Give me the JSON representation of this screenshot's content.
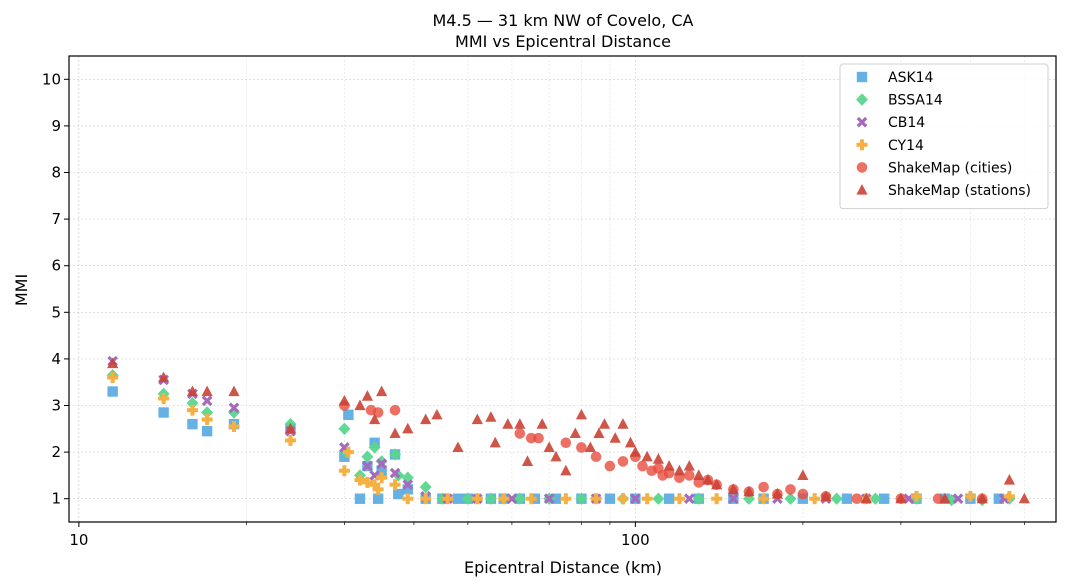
{
  "chart_data": {
    "type": "scatter",
    "title": "M4.5 — 31 km NW of Covelo, CA",
    "subtitle": "MMI vs Epicentral Distance",
    "xlabel": "Epicentral Distance (km)",
    "ylabel": "MMI",
    "x_scale": "log",
    "xlim": [
      9.6,
      570
    ],
    "ylim": [
      0.5,
      10.5
    ],
    "x_ticks": [
      {
        "value": 10,
        "label": "10"
      },
      {
        "value": 100,
        "label": "100"
      }
    ],
    "y_ticks": [
      {
        "value": 1,
        "label": "1"
      },
      {
        "value": 2,
        "label": "2"
      },
      {
        "value": 3,
        "label": "3"
      },
      {
        "value": 4,
        "label": "4"
      },
      {
        "value": 5,
        "label": "5"
      },
      {
        "value": 6,
        "label": "6"
      },
      {
        "value": 7,
        "label": "7"
      },
      {
        "value": 8,
        "label": "8"
      },
      {
        "value": 9,
        "label": "9"
      },
      {
        "value": 10,
        "label": "10"
      }
    ],
    "grid": true,
    "legend_position": "top-right",
    "series": [
      {
        "name": "ASK14",
        "marker": "square",
        "color": "#5DADE2",
        "points": [
          [
            11.5,
            3.3
          ],
          [
            14.2,
            2.85
          ],
          [
            16,
            2.6
          ],
          [
            17,
            2.45
          ],
          [
            19,
            2.6
          ],
          [
            24,
            2.5
          ],
          [
            30,
            1.9
          ],
          [
            30.5,
            2.8
          ],
          [
            32,
            1.0
          ],
          [
            33,
            1.7
          ],
          [
            34,
            2.2
          ],
          [
            34.5,
            1.0
          ],
          [
            35,
            1.6
          ],
          [
            37,
            1.95
          ],
          [
            37.5,
            1.1
          ],
          [
            39,
            1.2
          ],
          [
            42,
            1.0
          ],
          [
            45,
            1.0
          ],
          [
            48,
            1.0
          ],
          [
            50,
            1.0
          ],
          [
            55,
            1.0
          ],
          [
            58,
            1.0
          ],
          [
            62,
            1.0
          ],
          [
            66,
            1.0
          ],
          [
            72,
            1.0
          ],
          [
            80,
            1.0
          ],
          [
            90,
            1.0
          ],
          [
            100,
            1.0
          ],
          [
            115,
            1.0
          ],
          [
            130,
            1.0
          ],
          [
            150,
            1.0
          ],
          [
            170,
            1.0
          ],
          [
            200,
            1.0
          ],
          [
            240,
            1.0
          ],
          [
            280,
            1.0
          ],
          [
            320,
            1.0
          ],
          [
            360,
            1.0
          ],
          [
            400,
            1.0
          ],
          [
            450,
            1.0
          ]
        ]
      },
      {
        "name": "BSSA14",
        "marker": "diamond",
        "color": "#58D68D",
        "points": [
          [
            11.5,
            3.65
          ],
          [
            14.2,
            3.25
          ],
          [
            16,
            3.05
          ],
          [
            17,
            2.85
          ],
          [
            19,
            2.85
          ],
          [
            24,
            2.6
          ],
          [
            30,
            2.5
          ],
          [
            30.2,
            2.0
          ],
          [
            32,
            1.5
          ],
          [
            33,
            1.9
          ],
          [
            34,
            2.1
          ],
          [
            35,
            1.8
          ],
          [
            37,
            1.95
          ],
          [
            37.5,
            1.5
          ],
          [
            39,
            1.45
          ],
          [
            42,
            1.25
          ],
          [
            45,
            1.0
          ],
          [
            50,
            1.0
          ],
          [
            55,
            1.0
          ],
          [
            62,
            1.0
          ],
          [
            70,
            1.0
          ],
          [
            80,
            1.0
          ],
          [
            95,
            1.0
          ],
          [
            110,
            1.0
          ],
          [
            130,
            1.0
          ],
          [
            160,
            1.0
          ],
          [
            190,
            1.0
          ],
          [
            230,
            1.0
          ],
          [
            270,
            1.0
          ],
          [
            320,
            1.0
          ],
          [
            370,
            0.97
          ],
          [
            420,
            0.97
          ],
          [
            470,
            1.0
          ]
        ]
      },
      {
        "name": "CB14",
        "marker": "x",
        "color": "#A569BD",
        "points": [
          [
            11.5,
            3.95
          ],
          [
            14.2,
            3.55
          ],
          [
            16,
            3.25
          ],
          [
            17,
            3.1
          ],
          [
            19,
            2.95
          ],
          [
            24,
            2.45
          ],
          [
            30,
            2.1
          ],
          [
            33,
            1.7
          ],
          [
            34,
            1.5
          ],
          [
            35,
            1.75
          ],
          [
            37,
            1.55
          ],
          [
            39,
            1.3
          ],
          [
            42,
            1.05
          ],
          [
            46,
            1.0
          ],
          [
            52,
            1.0
          ],
          [
            60,
            1.0
          ],
          [
            70,
            1.0
          ],
          [
            85,
            1.0
          ],
          [
            100,
            1.0
          ],
          [
            125,
            1.0
          ],
          [
            150,
            1.0
          ],
          [
            180,
            1.0
          ],
          [
            220,
            1.0
          ],
          [
            260,
            1.0
          ],
          [
            310,
            1.0
          ],
          [
            380,
            1.0
          ],
          [
            460,
            1.0
          ]
        ]
      },
      {
        "name": "CY14",
        "marker": "plus",
        "color": "#F5B041",
        "points": [
          [
            11.5,
            3.6
          ],
          [
            14.2,
            3.15
          ],
          [
            16,
            2.9
          ],
          [
            17,
            2.7
          ],
          [
            19,
            2.55
          ],
          [
            24,
            2.25
          ],
          [
            30,
            1.6
          ],
          [
            30.5,
            2.0
          ],
          [
            32,
            1.4
          ],
          [
            33,
            1.35
          ],
          [
            34,
            1.3
          ],
          [
            34.5,
            1.2
          ],
          [
            35,
            1.45
          ],
          [
            37,
            1.3
          ],
          [
            39,
            1.0
          ],
          [
            42,
            1.0
          ],
          [
            46,
            1.0
          ],
          [
            52,
            1.0
          ],
          [
            58,
            1.0
          ],
          [
            65,
            1.0
          ],
          [
            75,
            1.0
          ],
          [
            85,
            1.0
          ],
          [
            95,
            1.0
          ],
          [
            105,
            1.0
          ],
          [
            120,
            1.0
          ],
          [
            140,
            1.0
          ],
          [
            170,
            1.0
          ],
          [
            210,
            1.0
          ],
          [
            260,
            1.0
          ],
          [
            320,
            1.05
          ],
          [
            400,
            1.05
          ],
          [
            470,
            1.05
          ]
        ]
      },
      {
        "name": "ShakeMap (cities)",
        "marker": "circle",
        "color": "#E74C3C",
        "points": [
          [
            30,
            3.0
          ],
          [
            33.5,
            2.9
          ],
          [
            34.5,
            2.85
          ],
          [
            37,
            2.9
          ],
          [
            62,
            2.4
          ],
          [
            65,
            2.3
          ],
          [
            67,
            2.3
          ],
          [
            75,
            2.2
          ],
          [
            80,
            2.1
          ],
          [
            85,
            1.9
          ],
          [
            90,
            1.7
          ],
          [
            95,
            1.8
          ],
          [
            100,
            1.9
          ],
          [
            103,
            1.7
          ],
          [
            107,
            1.6
          ],
          [
            110,
            1.65
          ],
          [
            112,
            1.5
          ],
          [
            115,
            1.55
          ],
          [
            120,
            1.45
          ],
          [
            125,
            1.5
          ],
          [
            130,
            1.35
          ],
          [
            135,
            1.4
          ],
          [
            140,
            1.3
          ],
          [
            150,
            1.2
          ],
          [
            160,
            1.15
          ],
          [
            170,
            1.25
          ],
          [
            180,
            1.1
          ],
          [
            190,
            1.2
          ],
          [
            200,
            1.1
          ],
          [
            220,
            1.05
          ],
          [
            250,
            1.0
          ],
          [
            300,
            1.0
          ],
          [
            350,
            1.0
          ],
          [
            420,
            1.0
          ]
        ]
      },
      {
        "name": "ShakeMap (stations)",
        "marker": "triangle",
        "color": "#CB4335",
        "points": [
          [
            11.5,
            3.9
          ],
          [
            14.2,
            3.6
          ],
          [
            16,
            3.3
          ],
          [
            17,
            3.3
          ],
          [
            19,
            3.3
          ],
          [
            24,
            2.5
          ],
          [
            30,
            3.1
          ],
          [
            32,
            3.0
          ],
          [
            33,
            3.2
          ],
          [
            34,
            2.7
          ],
          [
            35,
            3.3
          ],
          [
            37,
            2.4
          ],
          [
            39,
            2.5
          ],
          [
            42,
            2.7
          ],
          [
            44,
            2.8
          ],
          [
            48,
            2.1
          ],
          [
            52,
            2.7
          ],
          [
            55,
            2.75
          ],
          [
            56,
            2.2
          ],
          [
            59,
            2.6
          ],
          [
            62,
            2.6
          ],
          [
            64,
            1.8
          ],
          [
            68,
            2.6
          ],
          [
            70,
            2.1
          ],
          [
            72,
            1.9
          ],
          [
            75,
            1.6
          ],
          [
            78,
            2.4
          ],
          [
            80,
            2.8
          ],
          [
            83,
            2.1
          ],
          [
            86,
            2.4
          ],
          [
            88,
            2.6
          ],
          [
            92,
            2.3
          ],
          [
            95,
            2.6
          ],
          [
            98,
            2.2
          ],
          [
            100,
            2.0
          ],
          [
            105,
            1.9
          ],
          [
            110,
            1.85
          ],
          [
            115,
            1.7
          ],
          [
            120,
            1.6
          ],
          [
            125,
            1.7
          ],
          [
            130,
            1.5
          ],
          [
            135,
            1.4
          ],
          [
            140,
            1.3
          ],
          [
            150,
            1.2
          ],
          [
            160,
            1.15
          ],
          [
            180,
            1.1
          ],
          [
            200,
            1.5
          ],
          [
            220,
            1.05
          ],
          [
            260,
            1.0
          ],
          [
            300,
            1.0
          ],
          [
            360,
            1.0
          ],
          [
            420,
            1.0
          ],
          [
            470,
            1.4
          ],
          [
            500,
            1.0
          ]
        ]
      }
    ]
  }
}
